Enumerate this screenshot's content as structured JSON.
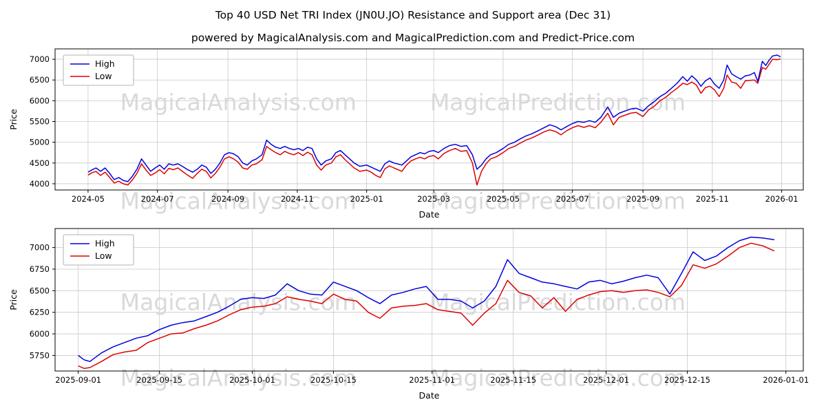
{
  "header": {
    "title": "Top 40 USD Net TRI Index (JN0U.JO) Resistance and Support area (Dec 31)",
    "subtitle": "powered by MagicalAnalysis.com and MagicalPrediction.com and Predict-Price.com"
  },
  "watermarks": [
    "MagicalAnalysis.com",
    "MagicalPrediction.com"
  ],
  "colors": {
    "high": "#0000dd",
    "low": "#dd0000",
    "grid": "#c8c8c8",
    "watermark": "#d9d9d9",
    "axis": "#000000",
    "legend_border": "#b3b3b3"
  },
  "chart_data": [
    {
      "type": "line",
      "xlabel": "Date",
      "ylabel": "Price",
      "grid": true,
      "legend_position": "upper left",
      "xlim": [
        "2024-04-02",
        "2026-01-20"
      ],
      "ylim": [
        3850,
        7250
      ],
      "x_tick_labels": [
        "2024-05",
        "2024-07",
        "2024-09",
        "2024-11",
        "2025-01",
        "2025-03",
        "2025-05",
        "2025-07",
        "2025-09",
        "2025-11",
        "2026-01"
      ],
      "x_tick_dates": [
        "2024-05-01",
        "2024-07-01",
        "2024-09-01",
        "2024-11-01",
        "2025-01-01",
        "2025-03-01",
        "2025-05-01",
        "2025-07-01",
        "2025-09-01",
        "2025-11-01",
        "2026-01-01"
      ],
      "y_ticks": [
        4000,
        4500,
        5000,
        5500,
        6000,
        6500,
        7000
      ],
      "series": [
        {
          "name": "High",
          "color": "#0000dd",
          "col": 1
        },
        {
          "name": "Low",
          "color": "#dd0000",
          "col": 2
        }
      ],
      "columns": [
        "date",
        "high",
        "low"
      ],
      "rows": [
        [
          "2024-05-01",
          4280,
          4210
        ],
        [
          "2024-05-04",
          4330,
          4260
        ],
        [
          "2024-05-08",
          4380,
          4300
        ],
        [
          "2024-05-12",
          4300,
          4200
        ],
        [
          "2024-05-16",
          4380,
          4280
        ],
        [
          "2024-05-20",
          4250,
          4150
        ],
        [
          "2024-05-24",
          4100,
          4020
        ],
        [
          "2024-05-28",
          4150,
          4060
        ],
        [
          "2024-06-01",
          4080,
          4000
        ],
        [
          "2024-06-05",
          4050,
          3970
        ],
        [
          "2024-06-09",
          4180,
          4090
        ],
        [
          "2024-06-13",
          4350,
          4250
        ],
        [
          "2024-06-17",
          4600,
          4480
        ],
        [
          "2024-06-21",
          4450,
          4330
        ],
        [
          "2024-06-25",
          4300,
          4200
        ],
        [
          "2024-06-29",
          4380,
          4260
        ],
        [
          "2024-07-03",
          4450,
          4340
        ],
        [
          "2024-07-07",
          4350,
          4240
        ],
        [
          "2024-07-11",
          4480,
          4370
        ],
        [
          "2024-07-15",
          4450,
          4340
        ],
        [
          "2024-07-19",
          4480,
          4380
        ],
        [
          "2024-07-23",
          4420,
          4300
        ],
        [
          "2024-07-27",
          4350,
          4220
        ],
        [
          "2024-08-01",
          4280,
          4130
        ],
        [
          "2024-08-05",
          4350,
          4250
        ],
        [
          "2024-08-09",
          4450,
          4350
        ],
        [
          "2024-08-13",
          4400,
          4300
        ],
        [
          "2024-08-17",
          4250,
          4140
        ],
        [
          "2024-08-21",
          4350,
          4250
        ],
        [
          "2024-08-25",
          4500,
          4400
        ],
        [
          "2024-08-29",
          4700,
          4600
        ],
        [
          "2024-09-02",
          4750,
          4650
        ],
        [
          "2024-09-06",
          4720,
          4600
        ],
        [
          "2024-09-10",
          4650,
          4520
        ],
        [
          "2024-09-14",
          4500,
          4380
        ],
        [
          "2024-09-18",
          4450,
          4350
        ],
        [
          "2024-09-22",
          4550,
          4450
        ],
        [
          "2024-09-26",
          4600,
          4480
        ],
        [
          "2024-10-01",
          4700,
          4580
        ],
        [
          "2024-10-05",
          5050,
          4900
        ],
        [
          "2024-10-09",
          4950,
          4820
        ],
        [
          "2024-10-13",
          4880,
          4750
        ],
        [
          "2024-10-17",
          4850,
          4700
        ],
        [
          "2024-10-21",
          4900,
          4780
        ],
        [
          "2024-10-25",
          4850,
          4730
        ],
        [
          "2024-10-29",
          4820,
          4700
        ],
        [
          "2024-11-02",
          4850,
          4750
        ],
        [
          "2024-11-06",
          4800,
          4680
        ],
        [
          "2024-11-10",
          4880,
          4760
        ],
        [
          "2024-11-14",
          4850,
          4700
        ],
        [
          "2024-11-18",
          4600,
          4450
        ],
        [
          "2024-11-22",
          4450,
          4330
        ],
        [
          "2024-11-26",
          4550,
          4450
        ],
        [
          "2024-12-01",
          4600,
          4500
        ],
        [
          "2024-12-05",
          4750,
          4650
        ],
        [
          "2024-12-09",
          4800,
          4700
        ],
        [
          "2024-12-13",
          4700,
          4580
        ],
        [
          "2024-12-17",
          4600,
          4480
        ],
        [
          "2024-12-21",
          4500,
          4380
        ],
        [
          "2024-12-26",
          4420,
          4300
        ],
        [
          "2025-01-01",
          4450,
          4330
        ],
        [
          "2025-01-05",
          4400,
          4280
        ],
        [
          "2025-01-09",
          4350,
          4200
        ],
        [
          "2025-01-13",
          4300,
          4150
        ],
        [
          "2025-01-17",
          4480,
          4360
        ],
        [
          "2025-01-21",
          4550,
          4430
        ],
        [
          "2025-01-25",
          4500,
          4380
        ],
        [
          "2025-02-01",
          4450,
          4300
        ],
        [
          "2025-02-05",
          4550,
          4450
        ],
        [
          "2025-02-09",
          4650,
          4550
        ],
        [
          "2025-02-13",
          4700,
          4600
        ],
        [
          "2025-02-17",
          4750,
          4640
        ],
        [
          "2025-02-21",
          4720,
          4600
        ],
        [
          "2025-02-25",
          4780,
          4660
        ],
        [
          "2025-03-01",
          4800,
          4680
        ],
        [
          "2025-03-05",
          4750,
          4600
        ],
        [
          "2025-03-10",
          4850,
          4730
        ],
        [
          "2025-03-15",
          4920,
          4800
        ],
        [
          "2025-03-20",
          4950,
          4850
        ],
        [
          "2025-03-25",
          4900,
          4780
        ],
        [
          "2025-03-30",
          4920,
          4800
        ],
        [
          "2025-04-04",
          4700,
          4500
        ],
        [
          "2025-04-08",
          4350,
          3970
        ],
        [
          "2025-04-12",
          4450,
          4300
        ],
        [
          "2025-04-16",
          4600,
          4480
        ],
        [
          "2025-04-20",
          4700,
          4600
        ],
        [
          "2025-04-25",
          4750,
          4650
        ],
        [
          "2025-05-01",
          4850,
          4750
        ],
        [
          "2025-05-06",
          4950,
          4850
        ],
        [
          "2025-05-11",
          5000,
          4900
        ],
        [
          "2025-05-16",
          5080,
          4980
        ],
        [
          "2025-05-21",
          5150,
          5050
        ],
        [
          "2025-05-26",
          5200,
          5100
        ],
        [
          "2025-06-01",
          5280,
          5180
        ],
        [
          "2025-06-06",
          5350,
          5250
        ],
        [
          "2025-06-11",
          5420,
          5300
        ],
        [
          "2025-06-16",
          5380,
          5260
        ],
        [
          "2025-06-21",
          5300,
          5180
        ],
        [
          "2025-06-26",
          5380,
          5280
        ],
        [
          "2025-07-01",
          5450,
          5350
        ],
        [
          "2025-07-06",
          5500,
          5400
        ],
        [
          "2025-07-11",
          5480,
          5360
        ],
        [
          "2025-07-16",
          5520,
          5400
        ],
        [
          "2025-07-21",
          5480,
          5350
        ],
        [
          "2025-07-26",
          5600,
          5480
        ],
        [
          "2025-08-01",
          5850,
          5700
        ],
        [
          "2025-08-06",
          5600,
          5420
        ],
        [
          "2025-08-11",
          5700,
          5600
        ],
        [
          "2025-08-16",
          5750,
          5650
        ],
        [
          "2025-08-21",
          5800,
          5700
        ],
        [
          "2025-08-26",
          5820,
          5720
        ],
        [
          "2025-09-01",
          5750,
          5620
        ],
        [
          "2025-09-06",
          5880,
          5780
        ],
        [
          "2025-09-11",
          5980,
          5870
        ],
        [
          "2025-09-16",
          6100,
          6000
        ],
        [
          "2025-09-21",
          6180,
          6080
        ],
        [
          "2025-09-26",
          6300,
          6200
        ],
        [
          "2025-10-01",
          6420,
          6300
        ],
        [
          "2025-10-06",
          6580,
          6420
        ],
        [
          "2025-10-10",
          6470,
          6390
        ],
        [
          "2025-10-14",
          6600,
          6450
        ],
        [
          "2025-10-18",
          6500,
          6380
        ],
        [
          "2025-10-22",
          6350,
          6180
        ],
        [
          "2025-10-26",
          6480,
          6320
        ],
        [
          "2025-10-30",
          6550,
          6350
        ],
        [
          "2025-11-03",
          6400,
          6260
        ],
        [
          "2025-11-07",
          6300,
          6100
        ],
        [
          "2025-11-11",
          6500,
          6300
        ],
        [
          "2025-11-14",
          6860,
          6620
        ],
        [
          "2025-11-18",
          6650,
          6450
        ],
        [
          "2025-11-22",
          6580,
          6420
        ],
        [
          "2025-11-26",
          6520,
          6300
        ],
        [
          "2025-11-30",
          6600,
          6480
        ],
        [
          "2025-12-04",
          6620,
          6490
        ],
        [
          "2025-12-08",
          6680,
          6500
        ],
        [
          "2025-12-11",
          6460,
          6420
        ],
        [
          "2025-12-15",
          6950,
          6800
        ],
        [
          "2025-12-18",
          6850,
          6760
        ],
        [
          "2025-12-21",
          6980,
          6880
        ],
        [
          "2025-12-24",
          7080,
          7000
        ],
        [
          "2025-12-28",
          7100,
          6990
        ],
        [
          "2025-12-31",
          7060,
          7010
        ]
      ]
    },
    {
      "type": "line",
      "xlabel": "Date",
      "ylabel": "Price",
      "grid": true,
      "legend_position": "upper left",
      "xlim": [
        "2025-08-28",
        "2026-01-04"
      ],
      "ylim": [
        5570,
        7220
      ],
      "x_tick_labels": [
        "2025-09-01",
        "2025-09-15",
        "2025-10-01",
        "2025-10-15",
        "2025-11-01",
        "2025-11-15",
        "2025-12-01",
        "2025-12-15",
        "2026-01-01"
      ],
      "x_tick_dates": [
        "2025-09-01",
        "2025-09-15",
        "2025-10-01",
        "2025-10-15",
        "2025-11-01",
        "2025-11-15",
        "2025-12-01",
        "2025-12-15",
        "2026-01-01"
      ],
      "y_ticks": [
        5750,
        6000,
        6250,
        6500,
        6750,
        7000
      ],
      "series": [
        {
          "name": "High",
          "color": "#0000dd",
          "col": 1
        },
        {
          "name": "Low",
          "color": "#dd0000",
          "col": 2
        }
      ],
      "columns": [
        "date",
        "high",
        "low"
      ],
      "rows": [
        [
          "2025-09-01",
          5750,
          5630
        ],
        [
          "2025-09-02",
          5700,
          5600
        ],
        [
          "2025-09-03",
          5680,
          5610
        ],
        [
          "2025-09-05",
          5780,
          5680
        ],
        [
          "2025-09-07",
          5850,
          5760
        ],
        [
          "2025-09-09",
          5900,
          5790
        ],
        [
          "2025-09-11",
          5950,
          5810
        ],
        [
          "2025-09-13",
          5980,
          5900
        ],
        [
          "2025-09-15",
          6050,
          5950
        ],
        [
          "2025-09-17",
          6100,
          6000
        ],
        [
          "2025-09-19",
          6130,
          6010
        ],
        [
          "2025-09-21",
          6150,
          6060
        ],
        [
          "2025-09-23",
          6200,
          6100
        ],
        [
          "2025-09-25",
          6250,
          6150
        ],
        [
          "2025-09-27",
          6320,
          6220
        ],
        [
          "2025-09-29",
          6400,
          6280
        ],
        [
          "2025-10-01",
          6420,
          6310
        ],
        [
          "2025-10-03",
          6410,
          6320
        ],
        [
          "2025-10-05",
          6450,
          6350
        ],
        [
          "2025-10-07",
          6580,
          6430
        ],
        [
          "2025-10-09",
          6500,
          6400
        ],
        [
          "2025-10-11",
          6460,
          6380
        ],
        [
          "2025-10-13",
          6450,
          6350
        ],
        [
          "2025-10-15",
          6600,
          6460
        ],
        [
          "2025-10-17",
          6550,
          6400
        ],
        [
          "2025-10-19",
          6500,
          6380
        ],
        [
          "2025-10-21",
          6420,
          6250
        ],
        [
          "2025-10-23",
          6350,
          6180
        ],
        [
          "2025-10-25",
          6450,
          6300
        ],
        [
          "2025-10-27",
          6480,
          6320
        ],
        [
          "2025-10-29",
          6520,
          6330
        ],
        [
          "2025-10-31",
          6550,
          6350
        ],
        [
          "2025-11-02",
          6400,
          6280
        ],
        [
          "2025-11-04",
          6400,
          6260
        ],
        [
          "2025-11-06",
          6380,
          6240
        ],
        [
          "2025-11-08",
          6300,
          6100
        ],
        [
          "2025-11-10",
          6380,
          6240
        ],
        [
          "2025-11-12",
          6550,
          6350
        ],
        [
          "2025-11-14",
          6860,
          6620
        ],
        [
          "2025-11-16",
          6700,
          6480
        ],
        [
          "2025-11-18",
          6650,
          6440
        ],
        [
          "2025-11-20",
          6600,
          6300
        ],
        [
          "2025-11-22",
          6580,
          6420
        ],
        [
          "2025-11-24",
          6550,
          6260
        ],
        [
          "2025-11-26",
          6520,
          6400
        ],
        [
          "2025-11-28",
          6600,
          6450
        ],
        [
          "2025-11-30",
          6620,
          6490
        ],
        [
          "2025-12-02",
          6580,
          6500
        ],
        [
          "2025-12-04",
          6610,
          6480
        ],
        [
          "2025-12-06",
          6650,
          6500
        ],
        [
          "2025-12-08",
          6680,
          6510
        ],
        [
          "2025-12-10",
          6650,
          6480
        ],
        [
          "2025-12-12",
          6460,
          6430
        ],
        [
          "2025-12-14",
          6700,
          6560
        ],
        [
          "2025-12-16",
          6950,
          6800
        ],
        [
          "2025-12-18",
          6850,
          6760
        ],
        [
          "2025-12-20",
          6900,
          6810
        ],
        [
          "2025-12-22",
          7000,
          6900
        ],
        [
          "2025-12-24",
          7080,
          7000
        ],
        [
          "2025-12-26",
          7120,
          7050
        ],
        [
          "2025-12-28",
          7110,
          7020
        ],
        [
          "2025-12-30",
          7090,
          6960
        ]
      ]
    }
  ]
}
